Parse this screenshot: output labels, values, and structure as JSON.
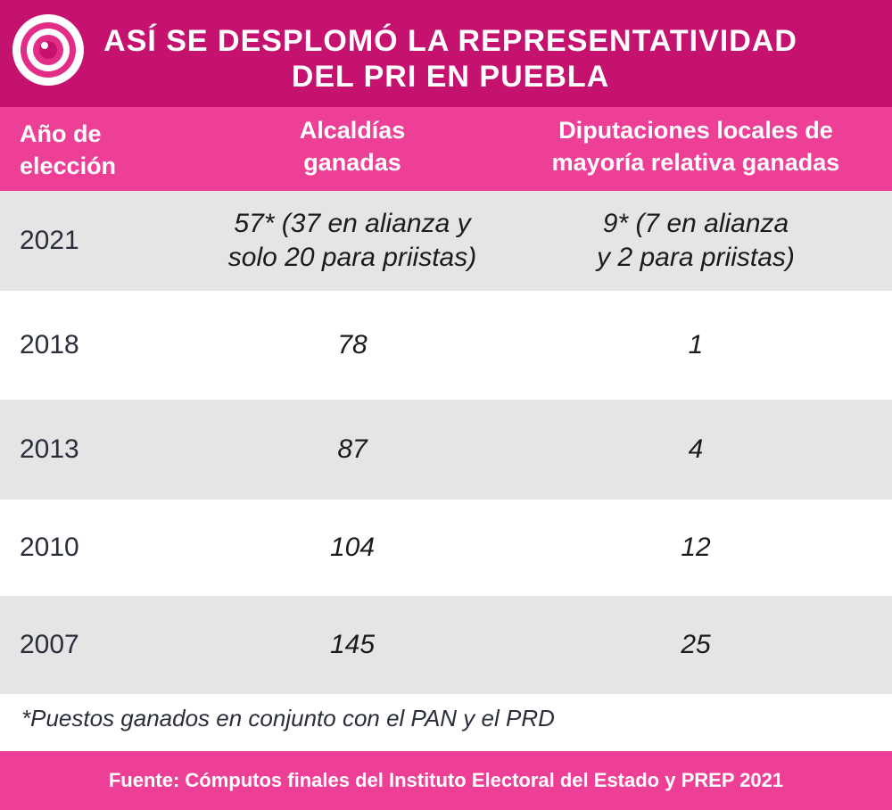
{
  "header": {
    "title_line1": "ASÍ SE DESPLOMÓ LA REPRESENTATIVIDAD",
    "title_line2": "DEL PRI EN PUEBLA",
    "logo_icon": "camera-lens-icon"
  },
  "table": {
    "headers": {
      "year_line1": "Año de",
      "year_line2": "elección",
      "alcaldias_line1": "Alcaldías",
      "alcaldias_line2": "ganadas",
      "diputaciones_line1": "Diputaciones locales de",
      "diputaciones_line2": "mayoría relativa ganadas"
    },
    "rows": [
      {
        "year": "2021",
        "alcaldias_line1": "57* (37 en alianza y",
        "alcaldias_line2": "solo 20 para priistas)",
        "diputaciones_line1": "9* (7 en alianza",
        "diputaciones_line2": "y 2 para priistas)"
      },
      {
        "year": "2018",
        "alcaldias_line1": "78",
        "alcaldias_line2": "",
        "diputaciones_line1": "1",
        "diputaciones_line2": ""
      },
      {
        "year": "2013",
        "alcaldias_line1": "87",
        "alcaldias_line2": "",
        "diputaciones_line1": "4",
        "diputaciones_line2": ""
      },
      {
        "year": "2010",
        "alcaldias_line1": "104",
        "alcaldias_line2": "",
        "diputaciones_line1": "12",
        "diputaciones_line2": ""
      },
      {
        "year": "2007",
        "alcaldias_line1": "145",
        "alcaldias_line2": "",
        "diputaciones_line1": "25",
        "diputaciones_line2": ""
      }
    ]
  },
  "note": "*Puestos ganados en conjunto con el PAN y el PRD",
  "footer": "Fuente: Cómputos finales del Instituto Electoral del Estado y PREP 2021",
  "colors": {
    "header_bg": "#c6126f",
    "accent_pink": "#ee3f97",
    "row_gray": "#e5e5e5"
  }
}
